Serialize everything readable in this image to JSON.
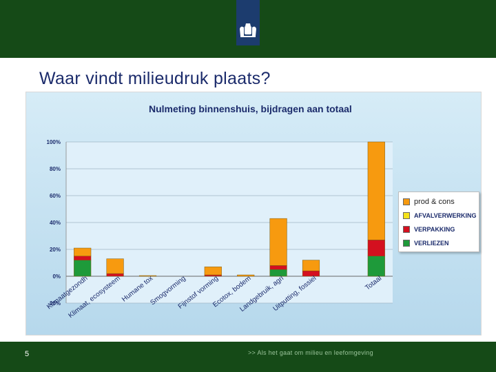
{
  "slide": {
    "title": "Waar vindt milieudruk plaats?",
    "page_number": "5",
    "footer": ">> Als het gaat om milieu en leefomgeving"
  },
  "colors": {
    "header_green": "#154a17",
    "logo_blue": "#1c3c6e",
    "title_blue": "#1b2b6b"
  },
  "icons": {
    "logo": "royal-coat-of-arms-icon"
  },
  "chart_data": {
    "type": "bar",
    "stacked": true,
    "title": "Nulmeting binnenshuis, bijdragen aan totaal",
    "xlabel": "",
    "ylabel": "",
    "ylim": [
      -20,
      100
    ],
    "yticks": [
      "-20%",
      "0%",
      "20%",
      "40%",
      "60%",
      "80%",
      "100%"
    ],
    "ytick_values": [
      -20,
      0,
      20,
      40,
      60,
      80,
      100
    ],
    "grid": true,
    "legend_position": "right",
    "categories": [
      "Klimaatgezondh",
      "Klimaat, ecosysteem",
      "Humane tox",
      "Smogvorming",
      "Fijnstof vorming",
      "Ecotox, bodem",
      "Landgebruik, agri",
      "Uitputting, fossiel",
      "",
      "Totaal"
    ],
    "series": [
      {
        "name": "VERLIEZEN",
        "color": "#1e9a3a",
        "values": [
          12,
          0,
          0,
          0,
          0,
          0,
          5,
          0,
          0,
          15
        ]
      },
      {
        "name": "VERPAKKING",
        "color": "#d4101f",
        "values": [
          3,
          2,
          0,
          0,
          1,
          0,
          3,
          4,
          0,
          12
        ]
      },
      {
        "name": "AFVALVERWERKING",
        "color": "#f5e21a",
        "values": [
          0,
          0,
          0,
          0,
          0,
          0,
          0,
          0,
          0,
          0
        ]
      },
      {
        "name": "prod & cons",
        "color": "#f79a0f",
        "values": [
          6,
          11,
          0.5,
          0,
          6,
          1,
          35,
          8,
          0,
          73
        ]
      }
    ],
    "legend": [
      "prod & cons",
      "AFVALVERWERKING",
      "VERPAKKING",
      "VERLIEZEN"
    ]
  }
}
